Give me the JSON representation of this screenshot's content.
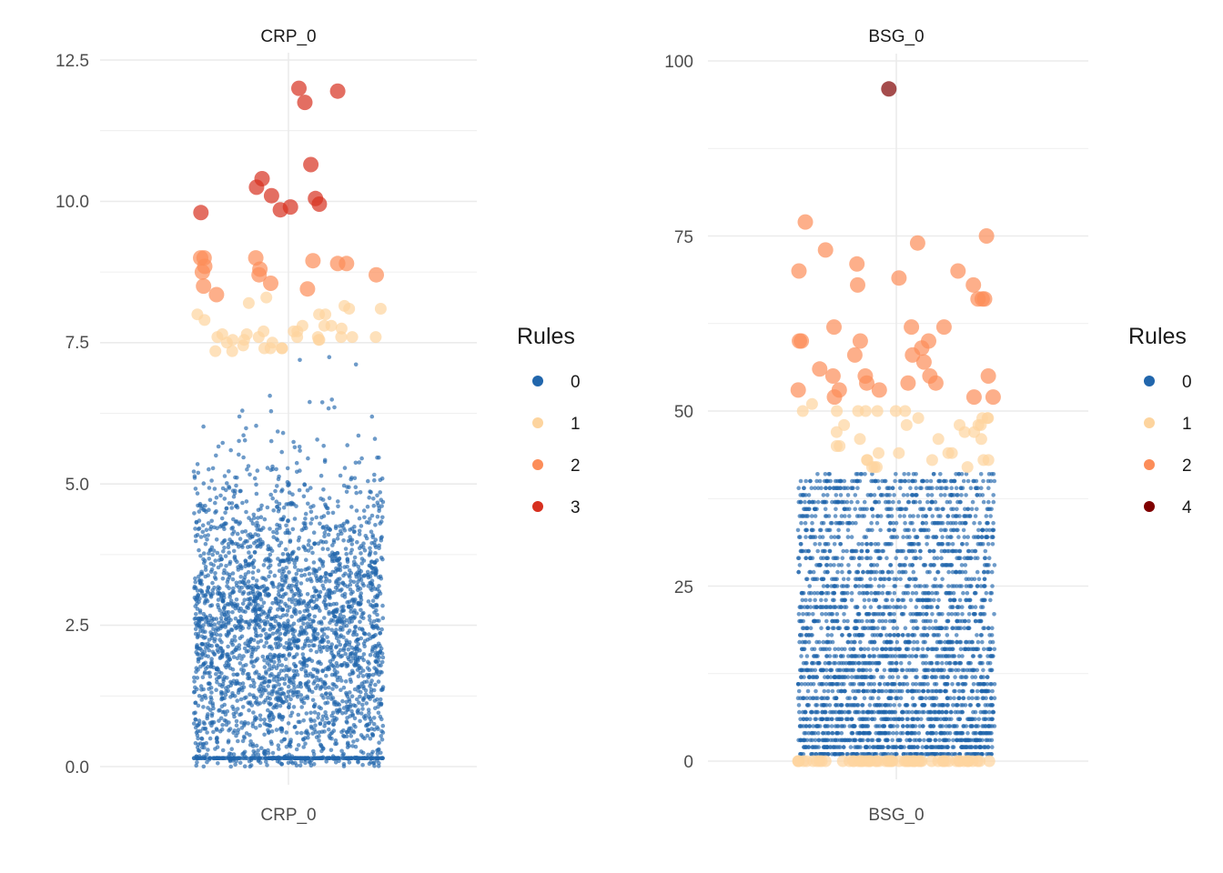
{
  "chart_data": [
    {
      "type": "scatter",
      "subtype": "jitter-strip",
      "title": "CRP_0",
      "xlabel": "",
      "ylabel": "",
      "x_categories": [
        "CRP_0"
      ],
      "ylim": [
        0,
        12.5
      ],
      "y_ticks": [
        0.0,
        2.5,
        5.0,
        7.5,
        10.0,
        12.5
      ],
      "y_tick_labels": [
        "0.0",
        "2.5",
        "5.0",
        "7.5",
        "10.0",
        "12.5"
      ],
      "grid": true,
      "legend": {
        "title": "Rules",
        "position": "right",
        "entries": [
          {
            "label": "0",
            "color": "#2166ac"
          },
          {
            "label": "1",
            "color": "#fdd49e"
          },
          {
            "label": "2",
            "color": "#fc8d59"
          },
          {
            "label": "3",
            "color": "#d7301f"
          }
        ]
      },
      "series": [
        {
          "rule": "0",
          "color": "#2166ac",
          "y_range": [
            0.15,
            7.3
          ],
          "count_approx": 3000,
          "dense_rows": [
            0.15
          ]
        },
        {
          "rule": "1",
          "color": "#fdd49e",
          "values": [
            7.6,
            7.6,
            7.7,
            7.75,
            7.8,
            7.65,
            8.0,
            8.1,
            8.15,
            7.4,
            7.8,
            8.1,
            8.2,
            7.8,
            7.5,
            7.35,
            7.6,
            7.4,
            7.55,
            7.5,
            7.6,
            8.3,
            8.0,
            7.55,
            7.7,
            7.6,
            7.55,
            7.65,
            7.55,
            7.6,
            7.4,
            8.0,
            7.9,
            7.4,
            7.35,
            7.7,
            7.45,
            7.6
          ]
        },
        {
          "rule": "2",
          "color": "#fc8d59",
          "values": [
            8.75,
            8.8,
            8.45,
            9.0,
            8.5,
            8.35,
            8.95,
            8.7,
            8.85,
            8.9,
            9.0,
            8.7,
            9.0,
            8.9,
            8.55
          ]
        },
        {
          "rule": "3",
          "color": "#d7301f",
          "values": [
            10.25,
            10.1,
            9.85,
            11.75,
            11.95,
            12.0,
            10.4,
            10.05,
            9.8,
            9.9,
            9.95,
            10.65
          ]
        }
      ]
    },
    {
      "type": "scatter",
      "subtype": "jitter-strip",
      "title": "BSG_0",
      "xlabel": "",
      "ylabel": "",
      "x_categories": [
        "BSG_0"
      ],
      "ylim": [
        0,
        100
      ],
      "y_ticks": [
        0,
        25,
        50,
        75,
        100
      ],
      "y_tick_labels": [
        "0",
        "25",
        "50",
        "75",
        "100"
      ],
      "grid": true,
      "legend": {
        "title": "Rules",
        "position": "right",
        "entries": [
          {
            "label": "0",
            "color": "#2166ac"
          },
          {
            "label": "1",
            "color": "#fdd49e"
          },
          {
            "label": "2",
            "color": "#fc8d59"
          },
          {
            "label": "4",
            "color": "#7f0000"
          }
        ]
      },
      "series": [
        {
          "rule": "0",
          "color": "#2166ac",
          "y_range": [
            1,
            41
          ],
          "count_approx": 3000,
          "integer_valued": true
        },
        {
          "rule": "1",
          "color": "#fdd49e",
          "values": [
            0,
            0,
            0,
            0,
            0,
            0,
            0,
            0,
            0,
            0,
            0,
            0,
            0,
            0,
            0,
            0,
            0,
            0,
            0,
            0,
            0,
            0,
            0,
            0,
            0,
            0,
            0,
            0,
            0,
            0,
            0,
            0,
            0,
            0,
            0,
            0,
            0,
            0,
            0,
            0,
            0,
            0,
            0,
            0,
            0,
            0,
            0,
            0,
            0,
            0,
            0,
            0,
            0,
            0,
            0,
            0,
            0,
            0,
            0,
            0,
            42,
            42,
            43,
            44,
            43,
            43,
            42,
            44,
            43,
            44,
            43,
            45,
            46,
            47,
            48,
            48,
            49,
            49,
            50,
            50,
            50,
            50,
            50,
            51,
            48,
            47,
            46,
            48,
            49,
            50,
            50,
            45,
            44,
            46,
            48,
            42,
            47,
            49
          ]
        },
        {
          "rule": "2",
          "color": "#fc8d59",
          "values": [
            62,
            66,
            58,
            55,
            55,
            66,
            60,
            54,
            53,
            52,
            53,
            58,
            55,
            52,
            69,
            68,
            77,
            75,
            71,
            62,
            60,
            62,
            74,
            66,
            54,
            73,
            68,
            59,
            54,
            55,
            57,
            53,
            52,
            70,
            70,
            56,
            60,
            60
          ]
        },
        {
          "rule": "4",
          "color": "#7f0000",
          "values": [
            96
          ]
        }
      ]
    }
  ]
}
